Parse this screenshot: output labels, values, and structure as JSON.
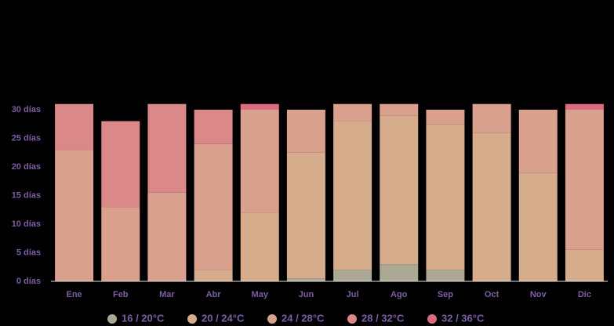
{
  "chart_data": {
    "type": "stacked-bar",
    "categories": [
      "Ene",
      "Feb",
      "Mar",
      "Abr",
      "May",
      "Jun",
      "Jul",
      "Ago",
      "Sep",
      "Oct",
      "Nov",
      "Dic"
    ],
    "series": [
      {
        "name": "16 / 20°C",
        "color": "#aba993",
        "values": [
          0,
          0,
          0,
          0,
          0,
          0.5,
          2,
          3,
          2,
          0,
          0,
          0
        ]
      },
      {
        "name": "20 / 24°C",
        "color": "#d6ad8c",
        "values": [
          0,
          0,
          0,
          2,
          12,
          22,
          26,
          26,
          25.5,
          26,
          19,
          5.5
        ]
      },
      {
        "name": "24 / 28°C",
        "color": "#daa08e",
        "values": [
          23,
          13,
          15.5,
          22,
          18,
          7.5,
          3,
          2,
          2.5,
          5,
          11,
          24.5
        ]
      },
      {
        "name": "28 / 32°C",
        "color": "#da8888",
        "values": [
          8,
          15,
          15.5,
          6,
          0,
          0,
          0,
          0,
          0,
          0,
          0,
          0
        ]
      },
      {
        "name": "32 / 36°C",
        "color": "#dc6a80",
        "values": [
          0,
          0,
          0,
          0,
          1,
          0,
          0,
          0,
          0,
          0,
          0,
          1
        ]
      }
    ],
    "ylim": [
      0,
      31
    ],
    "yticks": [
      {
        "value": 0,
        "label": "0 días"
      },
      {
        "value": 5,
        "label": "5 días"
      },
      {
        "value": 10,
        "label": "10 días"
      },
      {
        "value": 15,
        "label": "15 días"
      },
      {
        "value": 20,
        "label": "20 días"
      },
      {
        "value": 25,
        "label": "25 días"
      },
      {
        "value": 30,
        "label": "30 días"
      }
    ]
  }
}
